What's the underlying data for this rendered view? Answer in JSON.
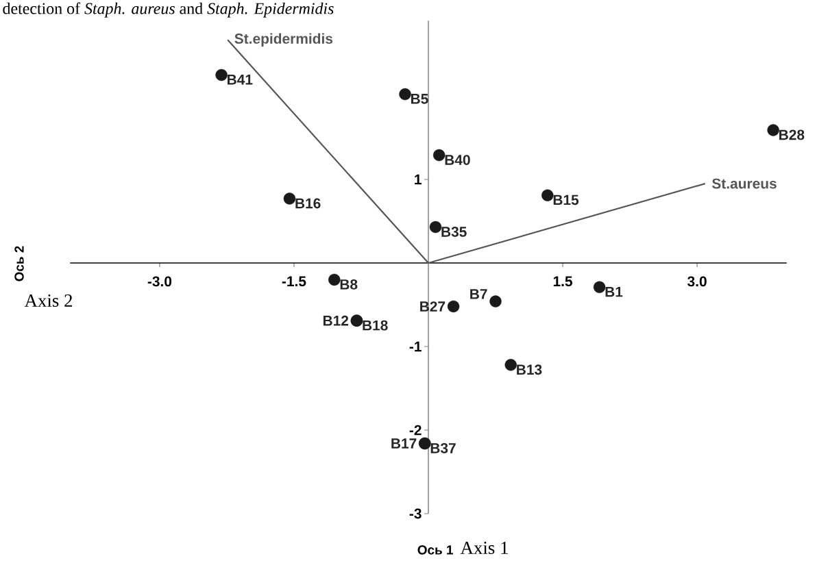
{
  "chart_data": {
    "type": "scatter",
    "title": "detection of *Staph. aureus* and *Staph. Epidermidis*",
    "xlabel": "Ось 1",
    "ylabel": "Ось 2",
    "xlim": [
      -4,
      4
    ],
    "ylim": [
      -3,
      2.9
    ],
    "xticks": [
      {
        "value": -3,
        "label": "-3.0"
      },
      {
        "value": -1.5,
        "label": "-1.5"
      },
      {
        "value": 1.5,
        "label": "1.5"
      },
      {
        "value": 3,
        "label": "3.0"
      }
    ],
    "yticks": [
      -3,
      -2,
      -1,
      1,
      {
        "value": 2,
        "label": null
      }
    ],
    "series": [
      {
        "color": "#1a1a1a",
        "marker": "circle",
        "x": [
          -2.31,
          -0.26,
          0.12,
          -1.55,
          0.08,
          1.33,
          3.85,
          -1.05,
          1.91,
          0.75,
          0.28,
          -0.8,
          -0.8,
          0.92,
          -0.04,
          -0.04
        ],
        "values": [
          2.25,
          2.02,
          1.29,
          0.77,
          0.43,
          0.81,
          1.59,
          -0.2,
          -0.29,
          -0.46,
          -0.52,
          -0.69,
          -0.69,
          -1.22,
          -2.16,
          -2.16
        ]
      },
      {
        "type": "line",
        "name": "St.epidermidis",
        "color": "#555555",
        "x": [
          0,
          -2.24
        ],
        "values": [
          0,
          2.67
        ]
      },
      {
        "type": "line",
        "name": "St.aureus",
        "color": "#555555",
        "x": [
          0,
          3.09
        ],
        "values": [
          0,
          0.95
        ]
      }
    ],
    "annotations": [
      {
        "text": "B41",
        "x": -2.31,
        "y": 2.25
      },
      {
        "text": "B5",
        "x": -0.26,
        "y": 2.02
      },
      {
        "text": "B40",
        "x": 0.12,
        "y": 1.29
      },
      {
        "text": "B16",
        "x": -1.55,
        "y": 0.77
      },
      {
        "text": "B35",
        "x": 0.08,
        "y": 0.43
      },
      {
        "text": "B15",
        "x": 1.33,
        "y": 0.81
      },
      {
        "text": "B28",
        "x": 3.85,
        "y": 1.59
      },
      {
        "text": "B8",
        "x": -1.05,
        "y": -0.2
      },
      {
        "text": "B1",
        "x": 1.91,
        "y": -0.29
      },
      {
        "text": "B7",
        "x": 0.75,
        "y": -0.46
      },
      {
        "text": "B27",
        "x": 0.28,
        "y": -0.52
      },
      {
        "text": "B12",
        "x": -0.8,
        "y": -0.69
      },
      {
        "text": "B18",
        "x": -0.8,
        "y": -0.69
      },
      {
        "text": "B13",
        "x": 0.92,
        "y": -1.22
      },
      {
        "text": "B17",
        "x": -0.04,
        "y": -2.16
      },
      {
        "text": "B37",
        "x": -0.04,
        "y": -2.16
      },
      "Axis 1",
      "Axis 2"
    ]
  }
}
